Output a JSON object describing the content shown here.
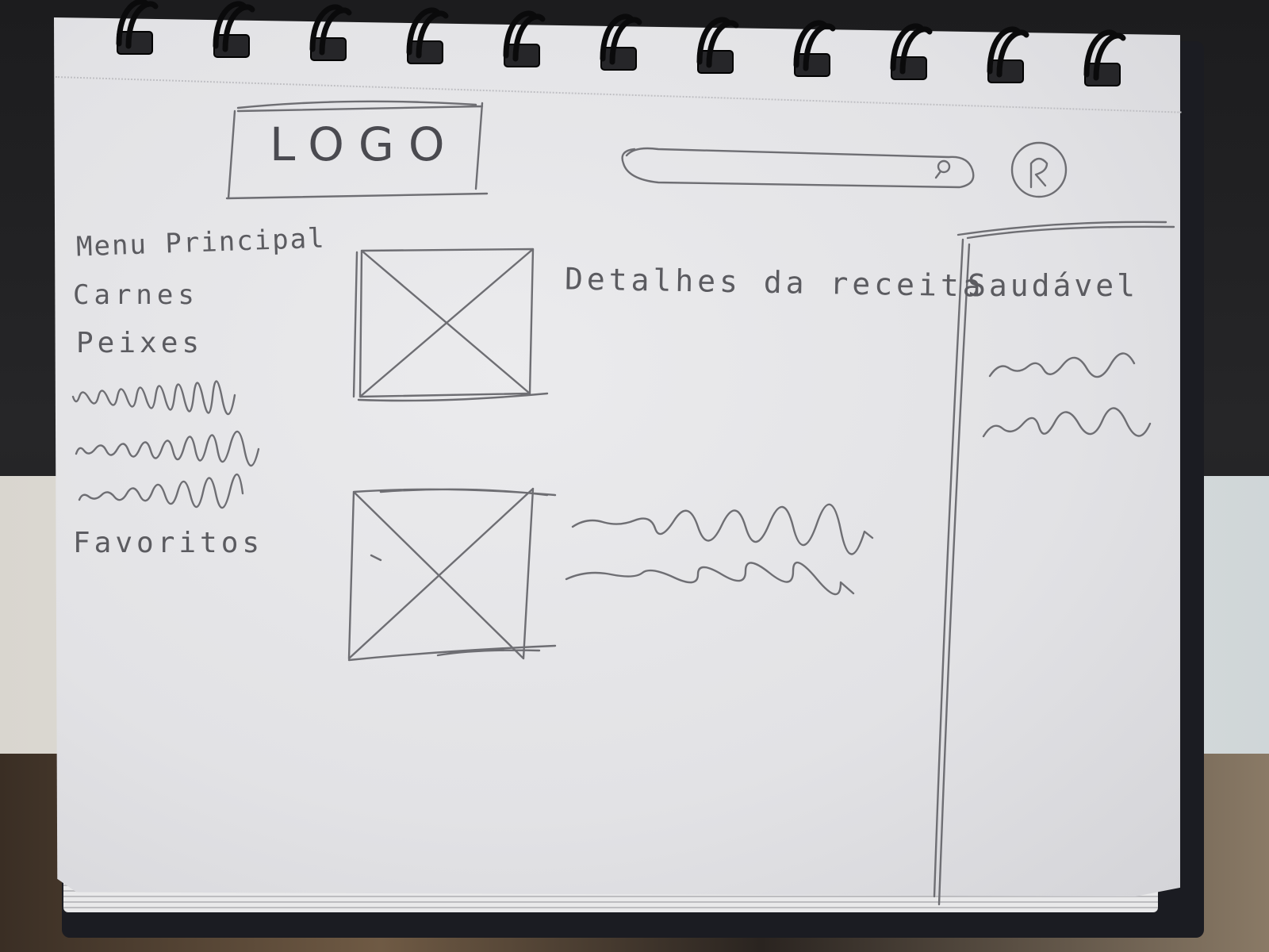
{
  "header": {
    "logo_label": "LOGO",
    "search": {
      "placeholder": "",
      "icon": "search-icon"
    },
    "user": {
      "icon": "user-icon"
    }
  },
  "sidebar": {
    "title": "Menu Principal",
    "items": [
      {
        "label": "Carnes"
      },
      {
        "label": "Peixes"
      }
    ],
    "placeholder_lines": 3,
    "favorites_label": "Favoritos"
  },
  "main": {
    "section_title": "Detalhes da receita",
    "cards": [
      {
        "image": "image-placeholder-icon",
        "text_lines": 0
      },
      {
        "image": "image-placeholder-icon",
        "text_lines": 2
      }
    ]
  },
  "right_panel": {
    "title": "Saudável",
    "placeholder_lines": 2
  },
  "colors": {
    "pencil": "#5b5b60",
    "paper": "#e4e4e7",
    "notebook": "#1b1c22"
  }
}
